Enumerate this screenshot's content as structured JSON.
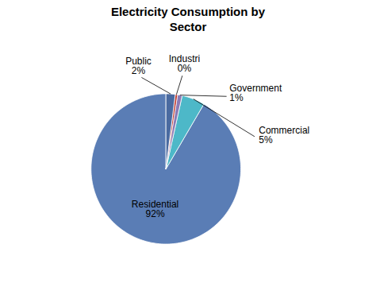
{
  "chart_data": {
    "type": "pie",
    "title": "Electricity Consumption by\nSector",
    "categories": [
      "Residential",
      "Commercial",
      "Government",
      "Industri",
      "Public"
    ],
    "values": [
      92,
      5,
      1,
      0.5,
      2
    ],
    "value_labels": [
      "92%",
      "5%",
      "1%",
      "0%",
      "2%"
    ],
    "colors": [
      "#5a7db5",
      "#4db8c8",
      "#8b7bb5",
      "#c0392b",
      "#4a6aa0"
    ],
    "data_labels": true
  }
}
